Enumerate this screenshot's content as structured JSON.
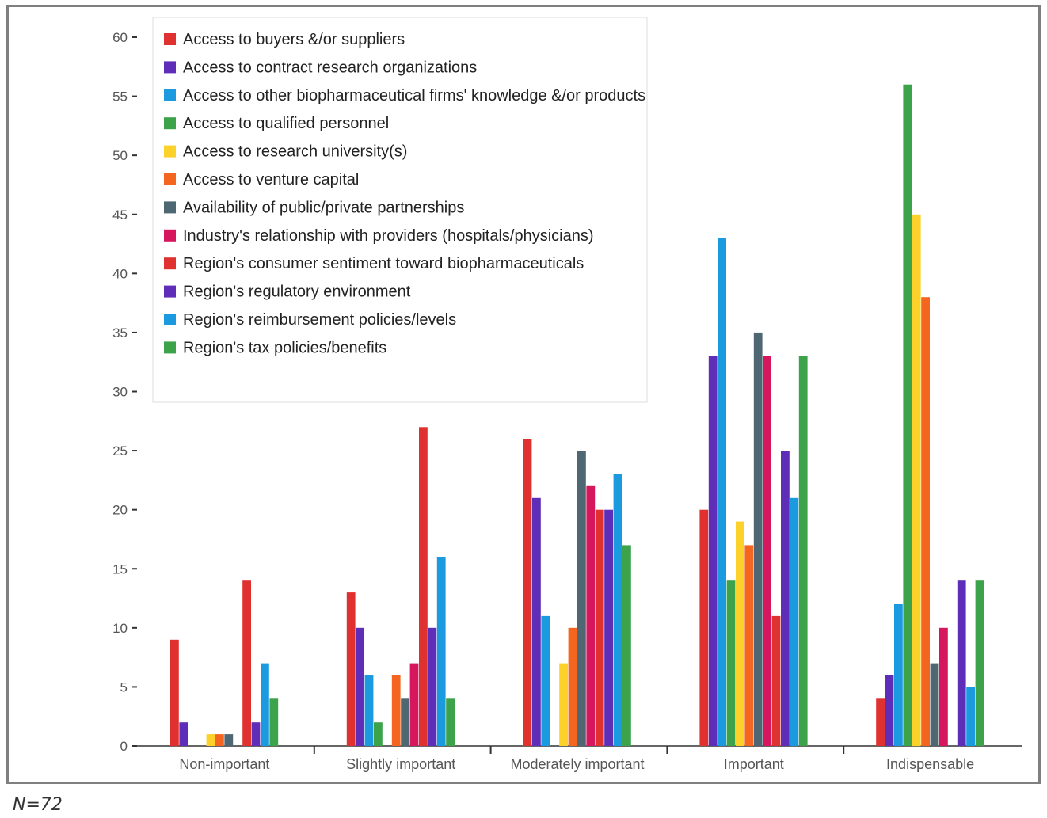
{
  "chart_data": {
    "type": "bar",
    "categories": [
      "Non-important",
      "Slightly important",
      "Moderately important",
      "Important",
      "Indispensable"
    ],
    "ylim": [
      0,
      60
    ],
    "yticks": [
      0,
      5,
      10,
      15,
      20,
      25,
      30,
      35,
      40,
      45,
      50,
      55,
      60
    ],
    "legend_position": "top-left",
    "series": [
      {
        "name": "Access to buyers &/or suppliers",
        "color": "#e03131",
        "values": [
          9,
          13,
          26,
          20,
          4
        ]
      },
      {
        "name": "Access to contract research organizations",
        "color": "#5f2eb8",
        "values": [
          2,
          10,
          21,
          33,
          6
        ]
      },
      {
        "name": "Access to other biopharmaceutical firms' knowledge &/or products",
        "color": "#1c9ae0",
        "values": [
          0,
          6,
          11,
          43,
          12
        ]
      },
      {
        "name": "Access to qualified personnel",
        "color": "#3da34a",
        "values": [
          0,
          2,
          0,
          14,
          56
        ]
      },
      {
        "name": "Access to research university(s)",
        "color": "#fcd12a",
        "values": [
          1,
          0,
          7,
          19,
          45
        ]
      },
      {
        "name": "Access to venture capital",
        "color": "#f4651f",
        "values": [
          1,
          6,
          10,
          17,
          38
        ]
      },
      {
        "name": "Availability of public/private partnerships",
        "color": "#4f6673",
        "values": [
          1,
          4,
          25,
          35,
          7
        ]
      },
      {
        "name": "Industry's relationship with providers (hospitals/physicians)",
        "color": "#d6175d",
        "values": [
          0,
          7,
          22,
          33,
          10
        ]
      },
      {
        "name": "Region's consumer sentiment toward biopharmaceuticals",
        "color": "#e03131",
        "values": [
          14,
          27,
          20,
          11,
          0
        ]
      },
      {
        "name": "Region's regulatory environment",
        "color": "#5f2eb8",
        "values": [
          2,
          10,
          20,
          25,
          14
        ]
      },
      {
        "name": "Region's reimbursement policies/levels",
        "color": "#1c9ae0",
        "values": [
          7,
          16,
          23,
          21,
          5
        ]
      },
      {
        "name": "Region's tax policies/benefits",
        "color": "#3da34a",
        "values": [
          4,
          4,
          17,
          33,
          14
        ]
      }
    ]
  },
  "note": "N=72"
}
